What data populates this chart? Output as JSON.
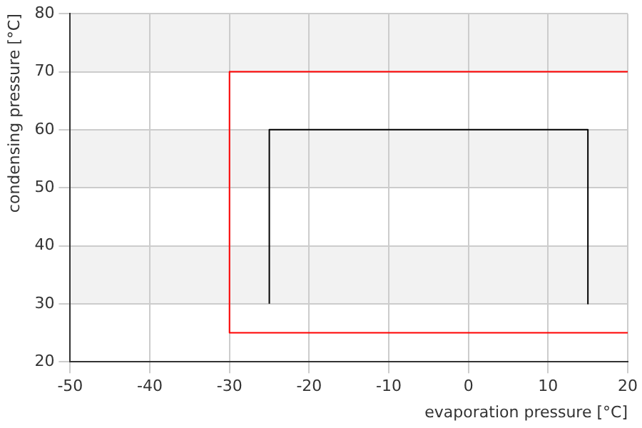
{
  "chart_data": {
    "type": "line",
    "xlabel": "evaporation pressure [°C]",
    "ylabel": "condensing pressure [°C]",
    "xlim": [
      -50,
      20
    ],
    "xticks": [
      -50,
      -40,
      -30,
      -20,
      -10,
      0,
      10,
      20
    ],
    "ylim": [
      20,
      80
    ],
    "yticks": [
      20,
      30,
      40,
      50,
      60,
      70,
      80
    ],
    "series": [
      {
        "x": [
          20,
          -30,
          -30,
          20
        ],
        "values": [
          70,
          70,
          25,
          25
        ],
        "color": "#ff0000"
      },
      {
        "x": [
          -25,
          -25,
          15,
          15
        ],
        "values": [
          30,
          60,
          60,
          30
        ],
        "color": "#000000"
      }
    ],
    "bands": [
      {
        "axis": "y",
        "from": 70,
        "to": 80,
        "color": "#f2f2f2"
      },
      {
        "axis": "y",
        "from": 50,
        "to": 60,
        "color": "#f2f2f2"
      },
      {
        "axis": "y",
        "from": 30,
        "to": 40,
        "color": "#f2f2f2"
      }
    ],
    "grid": true,
    "legend": false,
    "marker": "none",
    "line_style": "solid"
  }
}
